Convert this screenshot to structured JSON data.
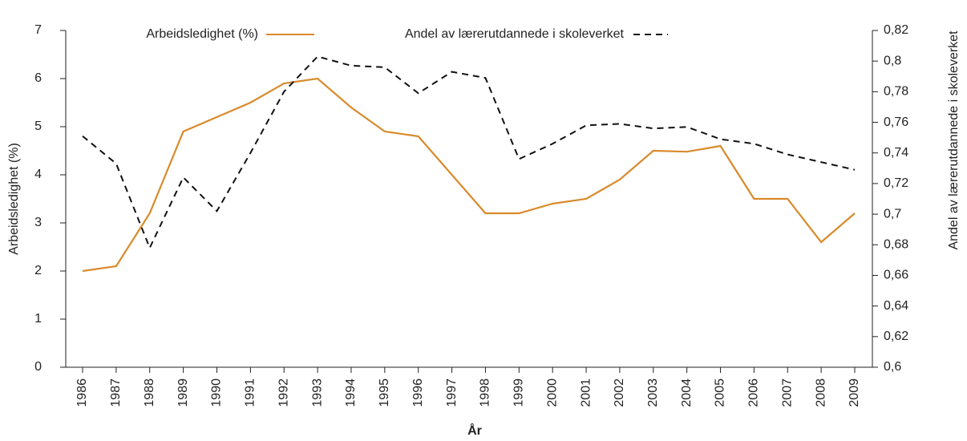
{
  "chart_data": {
    "type": "line",
    "xlabel": "År",
    "ylabel": "Arbeidsledighet (%)",
    "y2label": "Andel av lærerutdannede i skoleverket",
    "categories": [
      "1986",
      "1987",
      "1988",
      "1989",
      "1990",
      "1991",
      "1992",
      "1993",
      "1994",
      "1995",
      "1996",
      "1997",
      "1998",
      "1999",
      "2000",
      "2001",
      "2002",
      "2003",
      "2004",
      "2005",
      "2006",
      "2007",
      "2008",
      "2009"
    ],
    "series": [
      {
        "name": "Arbeidsledighet (%)",
        "color": "#d98a2b",
        "style": "solid",
        "values": [
          2.0,
          2.1,
          3.2,
          4.9,
          5.2,
          5.5,
          5.9,
          6.0,
          5.4,
          4.9,
          4.8,
          4.0,
          3.2,
          3.2,
          3.4,
          3.5,
          3.9,
          4.5,
          4.48,
          4.6,
          3.5,
          3.5,
          2.6,
          3.2
        ]
      },
      {
        "name": "Andel av lærerutdannede i skoleverket",
        "color": "#111111",
        "style": "dashed",
        "axis": "y2",
        "values": [
          0.751,
          0.733,
          0.678,
          0.724,
          0.702,
          0.74,
          0.78,
          0.803,
          0.797,
          0.796,
          0.779,
          0.793,
          0.789,
          0.736,
          0.746,
          0.758,
          0.759,
          0.756,
          0.757,
          0.749,
          0.746,
          0.739,
          0.734,
          0.729
        ]
      }
    ],
    "ylim": [
      0,
      7
    ],
    "yticks": [
      0,
      1,
      2,
      3,
      4,
      5,
      6,
      7
    ],
    "y2lim": [
      0.6,
      0.82
    ],
    "y2ticks": [
      {
        "value": 0.6,
        "label": "0,6"
      },
      {
        "value": 0.62,
        "label": "0,62"
      },
      {
        "value": 0.64,
        "label": "0,64"
      },
      {
        "value": 0.66,
        "label": "0,66"
      },
      {
        "value": 0.68,
        "label": "0,68"
      },
      {
        "value": 0.7,
        "label": "0,7"
      },
      {
        "value": 0.72,
        "label": "0,72"
      },
      {
        "value": 0.74,
        "label": "0,74"
      },
      {
        "value": 0.76,
        "label": "0,76"
      },
      {
        "value": 0.78,
        "label": "0,78"
      },
      {
        "value": 0.8,
        "label": "0,8"
      },
      {
        "value": 0.82,
        "label": "0,82"
      }
    ],
    "grid": false
  }
}
